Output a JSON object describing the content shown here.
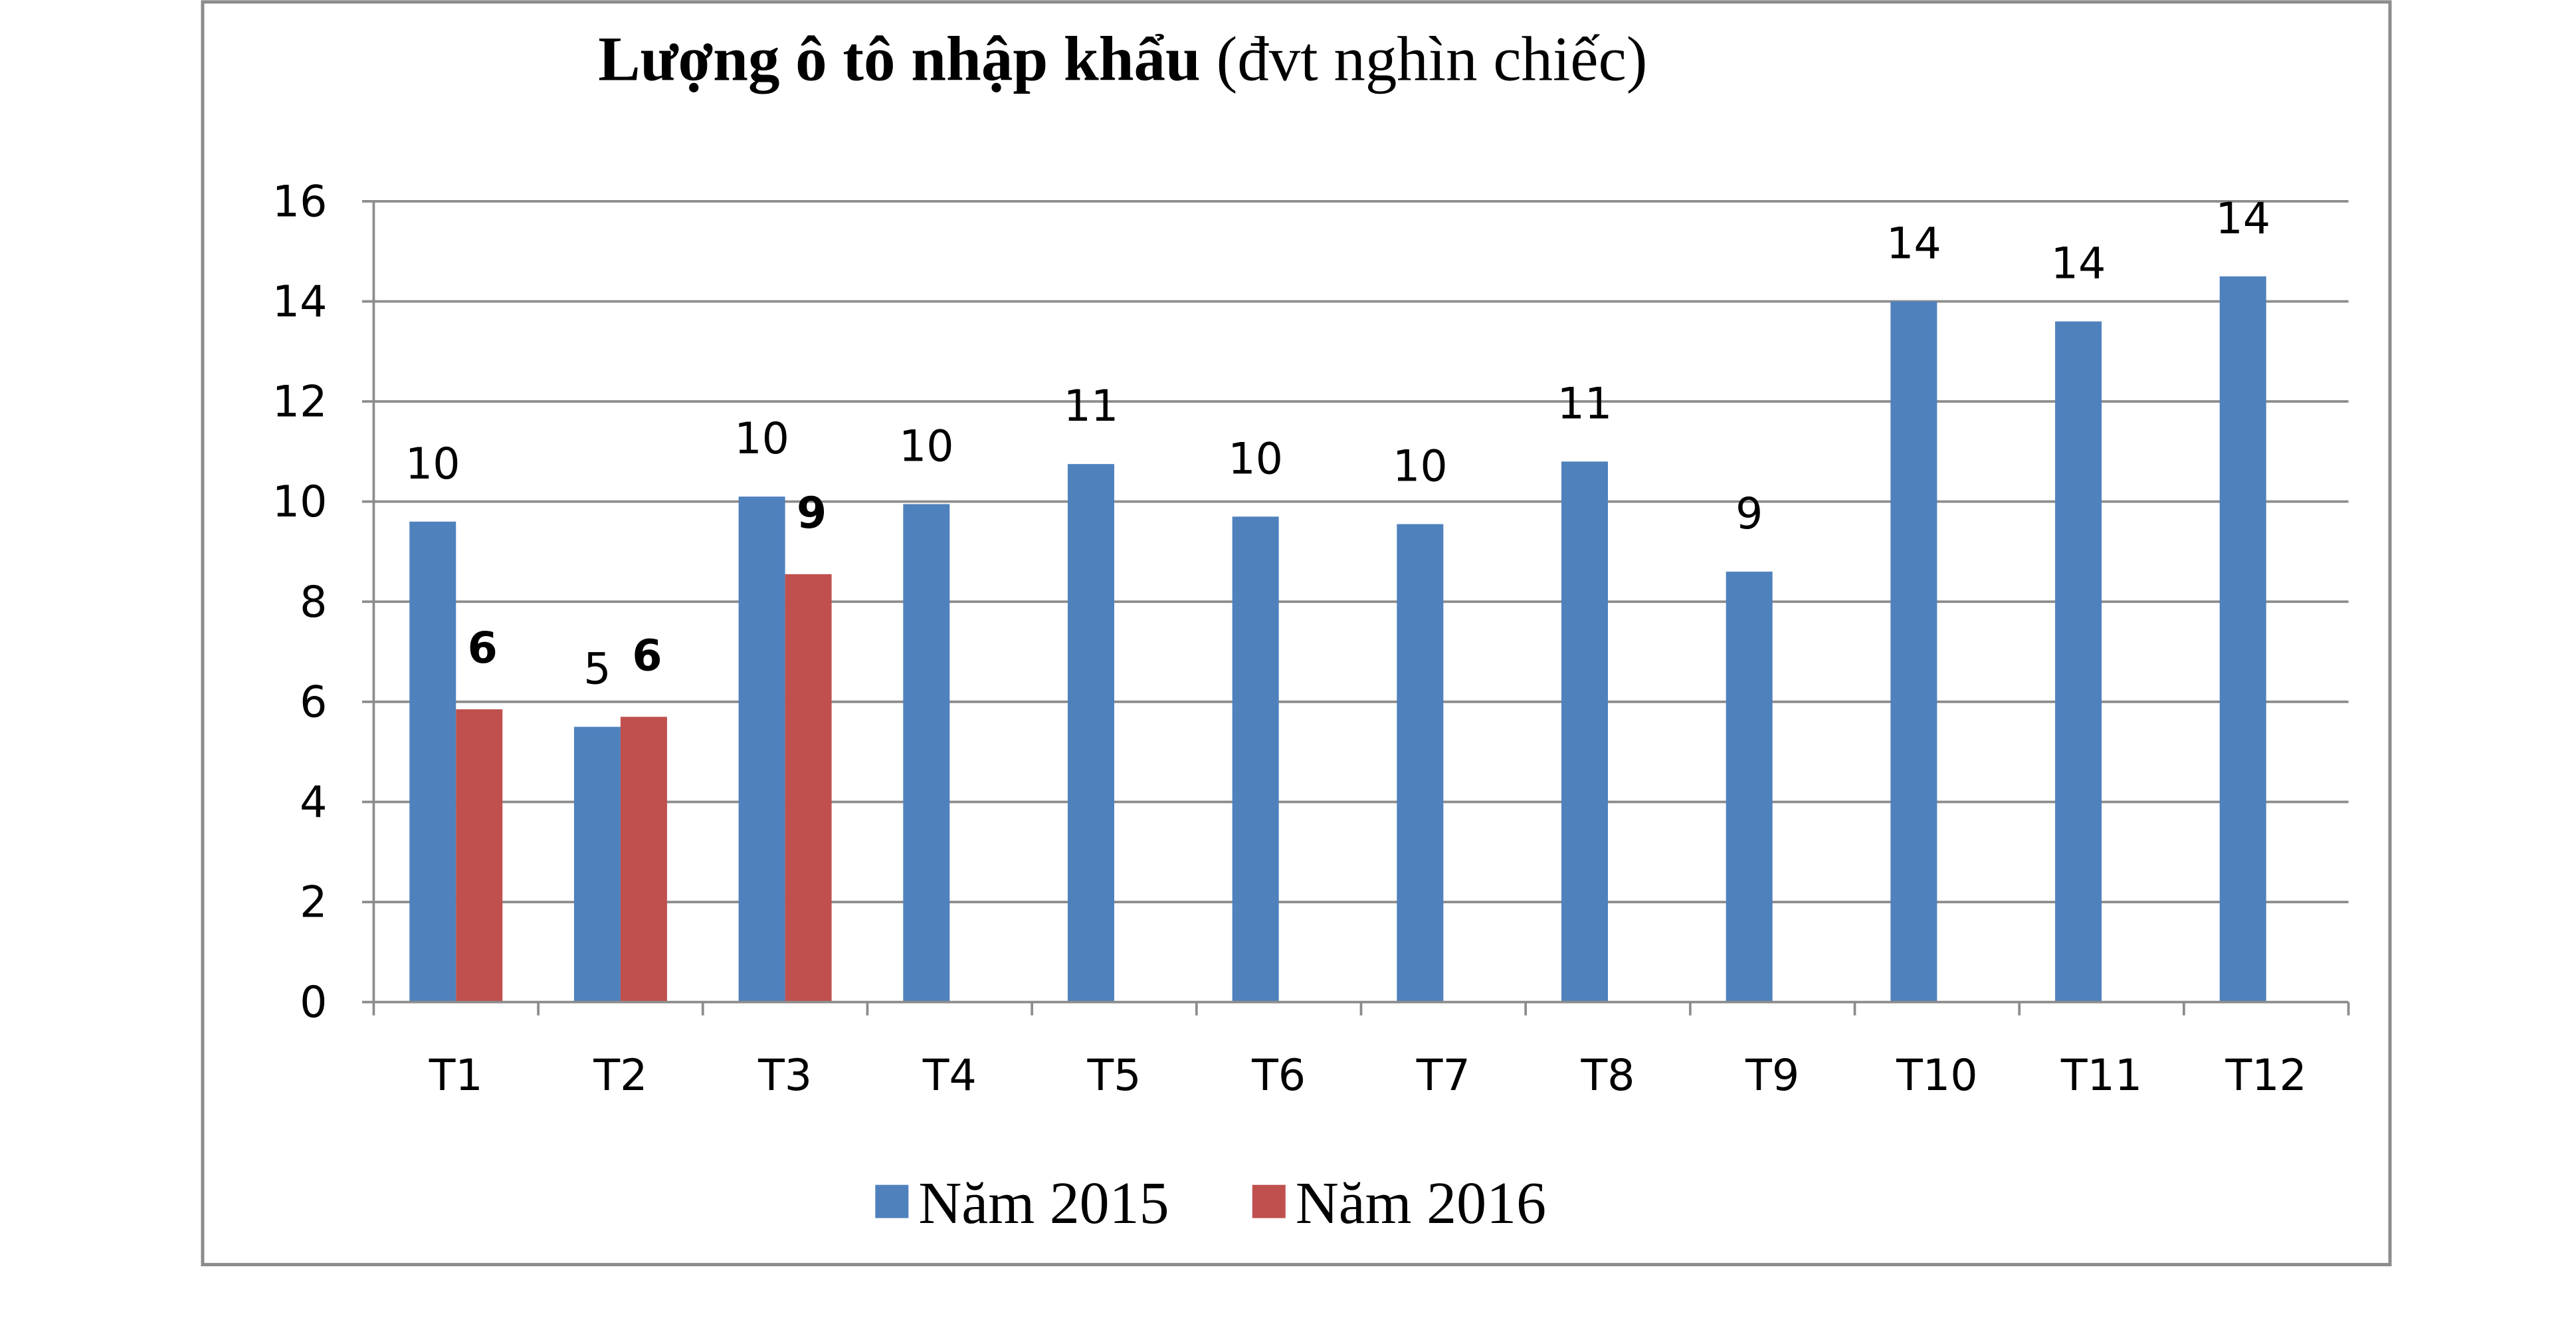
{
  "chart_data": {
    "type": "bar",
    "title": "Lượng ô tô nhập khẩu",
    "title_unit": "(đvt nghìn chiếc)",
    "xlabel": "",
    "ylabel": "",
    "categories": [
      "T1",
      "T2",
      "T3",
      "T4",
      "T5",
      "T6",
      "T7",
      "T8",
      "T9",
      "T10",
      "T11",
      "T12"
    ],
    "yticks": [
      "0",
      "2",
      "4",
      "6",
      "8",
      "10",
      "12",
      "14",
      "16"
    ],
    "ylim": [
      0,
      16
    ],
    "grid": true,
    "legend_position": "bottom",
    "series": [
      {
        "name": "Năm 2015",
        "color": "#4F81BD",
        "values": [
          9.6,
          5.5,
          10.1,
          9.95,
          10.75,
          9.7,
          9.55,
          10.8,
          8.6,
          14.0,
          13.6,
          14.5
        ],
        "labels": [
          "10",
          "5",
          "10",
          "10",
          "11",
          "10",
          "10",
          "11",
          "9",
          "14",
          "14",
          "14"
        ],
        "labels_bold": false
      },
      {
        "name": "Năm 2016",
        "color": "#C0504D",
        "values": [
          5.85,
          5.7,
          8.55,
          null,
          null,
          null,
          null,
          null,
          null,
          null,
          null,
          null
        ],
        "labels": [
          "6",
          "6",
          "9",
          null,
          null,
          null,
          null,
          null,
          null,
          null,
          null,
          null
        ],
        "labels_bold": true
      }
    ]
  }
}
